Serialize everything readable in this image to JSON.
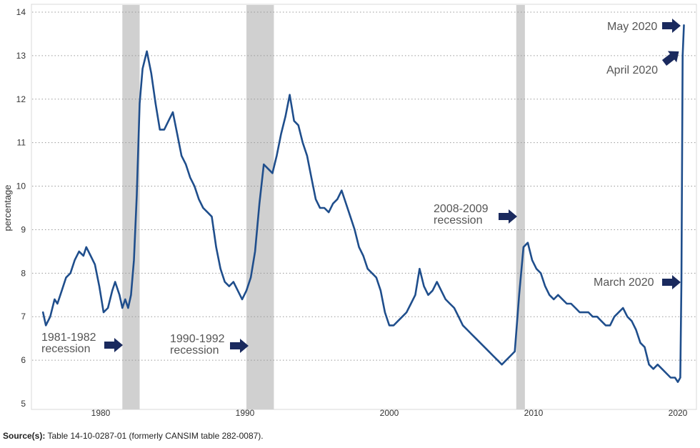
{
  "chart_data": {
    "type": "line",
    "title": "",
    "ylabel": "percentage",
    "xlabel": "",
    "ylim": [
      5,
      14
    ],
    "xlim": [
      1976,
      2020.6
    ],
    "grid": "horizontal-dotted",
    "yticks": [
      "5",
      "6",
      "7",
      "8",
      "9",
      "10",
      "11",
      "12",
      "13",
      "14"
    ],
    "xticks": [
      "1980",
      "1990",
      "2000",
      "2010",
      "2020"
    ],
    "line_color": "#1f4e8c",
    "recession_color": "#d0d0d0",
    "recessions": [
      {
        "start": 1981.5,
        "end": 1982.7
      },
      {
        "start": 1990.1,
        "end": 1992.0
      },
      {
        "start": 2008.8,
        "end": 2009.4
      }
    ],
    "series": [
      {
        "x": [
          1976.0,
          1976.2,
          1976.5,
          1976.8,
          1977.0,
          1977.3,
          1977.6,
          1977.9,
          1978.2,
          1978.5,
          1978.8,
          1979.0,
          1979.3,
          1979.6,
          1979.9,
          1980.2,
          1980.5,
          1980.8,
          1981.0,
          1981.3,
          1981.5,
          1981.7,
          1981.9,
          1982.1,
          1982.3,
          1982.5,
          1982.7,
          1982.9,
          1983.2,
          1983.5,
          1983.8,
          1984.1,
          1984.4,
          1984.7,
          1985.0,
          1985.3,
          1985.6,
          1985.9,
          1986.2,
          1986.5,
          1986.8,
          1987.1,
          1987.4,
          1987.7,
          1988.0,
          1988.3,
          1988.6,
          1988.9,
          1989.2,
          1989.5,
          1989.8,
          1990.1,
          1990.4,
          1990.7,
          1991.0,
          1991.3,
          1991.6,
          1991.9,
          1992.2,
          1992.5,
          1992.8,
          1993.1,
          1993.4,
          1993.7,
          1994.0,
          1994.3,
          1994.6,
          1994.9,
          1995.2,
          1995.5,
          1995.8,
          1996.1,
          1996.4,
          1996.7,
          1997.0,
          1997.3,
          1997.6,
          1997.9,
          1998.2,
          1998.5,
          1998.8,
          1999.1,
          1999.4,
          1999.7,
          2000.0,
          2000.3,
          2000.6,
          2000.9,
          2001.2,
          2001.5,
          2001.8,
          2002.1,
          2002.4,
          2002.7,
          2003.0,
          2003.3,
          2003.6,
          2003.9,
          2004.2,
          2004.5,
          2004.8,
          2005.1,
          2005.4,
          2005.7,
          2006.0,
          2006.3,
          2006.6,
          2006.9,
          2007.2,
          2007.5,
          2007.8,
          2008.1,
          2008.4,
          2008.7,
          2009.0,
          2009.3,
          2009.6,
          2009.9,
          2010.2,
          2010.5,
          2010.8,
          2011.1,
          2011.4,
          2011.7,
          2012.0,
          2012.3,
          2012.6,
          2012.9,
          2013.2,
          2013.5,
          2013.8,
          2014.1,
          2014.4,
          2014.7,
          2015.0,
          2015.3,
          2015.6,
          2015.9,
          2016.2,
          2016.5,
          2016.8,
          2017.1,
          2017.4,
          2017.7,
          2018.0,
          2018.3,
          2018.6,
          2018.9,
          2019.2,
          2019.5,
          2019.8,
          2020.0,
          2020.17,
          2020.25,
          2020.33,
          2020.42
        ],
        "values": [
          7.1,
          6.8,
          7.0,
          7.4,
          7.3,
          7.6,
          7.9,
          8.0,
          8.3,
          8.5,
          8.4,
          8.6,
          8.4,
          8.2,
          7.7,
          7.1,
          7.2,
          7.6,
          7.8,
          7.5,
          7.2,
          7.4,
          7.2,
          7.5,
          8.3,
          9.8,
          11.9,
          12.7,
          13.1,
          12.6,
          11.9,
          11.3,
          11.3,
          11.5,
          11.7,
          11.2,
          10.7,
          10.5,
          10.2,
          10.0,
          9.7,
          9.5,
          9.4,
          9.3,
          8.6,
          8.1,
          7.8,
          7.7,
          7.8,
          7.6,
          7.4,
          7.6,
          7.9,
          8.5,
          9.6,
          10.5,
          10.4,
          10.3,
          10.7,
          11.2,
          11.6,
          12.1,
          11.5,
          11.4,
          11.0,
          10.7,
          10.2,
          9.7,
          9.5,
          9.5,
          9.4,
          9.6,
          9.7,
          9.9,
          9.6,
          9.3,
          9.0,
          8.6,
          8.4,
          8.1,
          8.0,
          7.9,
          7.6,
          7.1,
          6.8,
          6.8,
          6.9,
          7.0,
          7.1,
          7.3,
          7.5,
          8.1,
          7.7,
          7.5,
          7.6,
          7.8,
          7.6,
          7.4,
          7.3,
          7.2,
          7.0,
          6.8,
          6.7,
          6.6,
          6.5,
          6.4,
          6.3,
          6.2,
          6.1,
          6.0,
          5.9,
          6.0,
          6.1,
          6.2,
          7.5,
          8.6,
          8.7,
          8.3,
          8.1,
          8.0,
          7.7,
          7.5,
          7.4,
          7.5,
          7.4,
          7.3,
          7.3,
          7.2,
          7.1,
          7.1,
          7.1,
          7.0,
          7.0,
          6.9,
          6.8,
          6.8,
          7.0,
          7.1,
          7.2,
          7.0,
          6.9,
          6.7,
          6.4,
          6.3,
          5.9,
          5.8,
          5.9,
          5.8,
          5.7,
          5.6,
          5.6,
          5.5,
          5.6,
          7.8,
          13.0,
          13.7
        ]
      }
    ],
    "annotations": [
      {
        "lines": [
          "1981-1982",
          "recession"
        ]
      },
      {
        "lines": [
          "1990-1992",
          "recession"
        ]
      },
      {
        "lines": [
          "2008-2009",
          "recession"
        ]
      },
      {
        "lines": [
          "March 2020"
        ]
      },
      {
        "lines": [
          "April 2020"
        ]
      },
      {
        "lines": [
          "May 2020"
        ]
      }
    ],
    "arrow_color": "#1a2a5e"
  },
  "source": {
    "label": "Source(s):",
    "text": "Table 14-10-0287-01 (formerly CANSIM table 282-0087)."
  }
}
